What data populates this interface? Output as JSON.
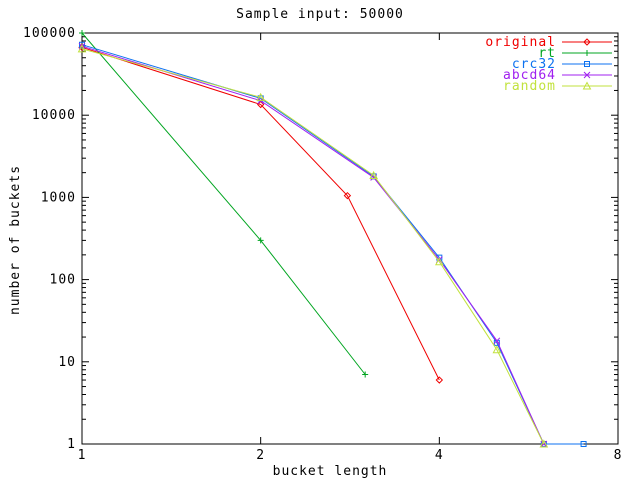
{
  "chart_data": {
    "type": "line",
    "title": "Sample input: 50000",
    "xlabel": "bucket length",
    "ylabel": "number of buckets",
    "x_scale": "log2",
    "y_scale": "log10",
    "xlim": [
      1,
      8
    ],
    "ylim": [
      1,
      100000
    ],
    "x_ticks": [
      1,
      2,
      4,
      8
    ],
    "y_ticks": [
      1,
      10,
      100,
      1000,
      10000,
      100000
    ],
    "grid": false,
    "legend_position": "top-right-inside",
    "axis_color": "#000000",
    "background_color": "#ffffff",
    "series": [
      {
        "name": "original",
        "color": "#f00000",
        "marker": "diamond",
        "points": [
          [
            1,
            67000
          ],
          [
            2,
            13500
          ],
          [
            2.8,
            1050
          ],
          [
            4,
            6
          ]
        ]
      },
      {
        "name": "rt",
        "color": "#00a520",
        "marker": "plus",
        "points": [
          [
            1,
            100000
          ],
          [
            2,
            300
          ],
          [
            3,
            7
          ]
        ]
      },
      {
        "name": "crc32",
        "color": "#0d72f0",
        "marker": "square",
        "points": [
          [
            1,
            72000
          ],
          [
            2,
            16000
          ],
          [
            3.1,
            1800
          ],
          [
            4,
            185
          ],
          [
            5,
            17
          ],
          [
            6,
            1
          ],
          [
            7,
            1
          ]
        ]
      },
      {
        "name": "abcd64",
        "color": "#a020f0",
        "marker": "cross",
        "points": [
          [
            1,
            69000
          ],
          [
            2,
            15000
          ],
          [
            3.1,
            1750
          ],
          [
            4,
            175
          ],
          [
            5,
            18
          ],
          [
            6,
            1
          ]
        ]
      },
      {
        "name": "random",
        "color": "#c2e23e",
        "marker": "triangle",
        "points": [
          [
            1,
            64000
          ],
          [
            2,
            16500
          ],
          [
            3.1,
            1850
          ],
          [
            4,
            165
          ],
          [
            5,
            14
          ],
          [
            6,
            1
          ]
        ]
      }
    ]
  }
}
